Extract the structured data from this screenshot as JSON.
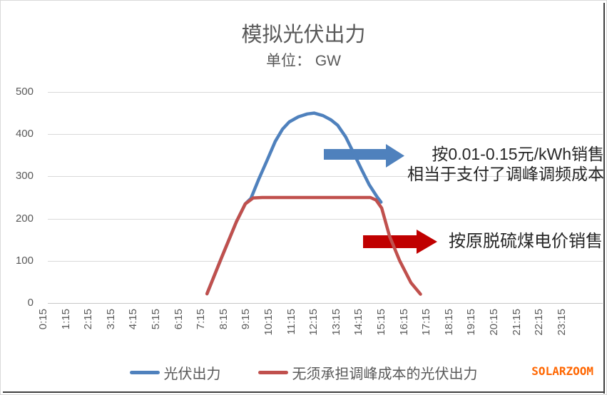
{
  "chart": {
    "title": "模拟光伏出力",
    "subtitle": "单位： GW",
    "watermark": "SOLARZOOM",
    "watermark_color": "#FF6600"
  },
  "chart_data": {
    "type": "line",
    "title": "模拟光伏出力",
    "unit": "GW",
    "ylabel": "",
    "xlabel": "",
    "ylim": [
      0,
      500
    ],
    "y_ticks": [
      0,
      100,
      200,
      300,
      400,
      500
    ],
    "grid": true,
    "legend_position": "bottom",
    "x_tick_labels": [
      "0:15",
      "1:15",
      "2:15",
      "3:15",
      "4:15",
      "5:15",
      "6:15",
      "7:15",
      "8:15",
      "9:15",
      "10:15",
      "11:15",
      "12:15",
      "13:15",
      "14:15",
      "15:15",
      "16:15",
      "17:15",
      "18:15",
      "19:15",
      "20:15",
      "21:15",
      "22:15",
      "23:15"
    ],
    "series": [
      {
        "name": "光伏出力",
        "color": "#4F81BD",
        "points": [
          [
            7.25,
            22
          ],
          [
            7.9,
            108
          ],
          [
            8.55,
            192
          ],
          [
            8.95,
            235
          ],
          [
            9.2,
            248
          ],
          [
            9.55,
            294
          ],
          [
            9.9,
            336
          ],
          [
            10.28,
            383
          ],
          [
            10.6,
            412
          ],
          [
            10.9,
            429
          ],
          [
            11.3,
            441
          ],
          [
            11.7,
            448
          ],
          [
            12.0,
            450
          ],
          [
            12.4,
            444
          ],
          [
            12.75,
            434
          ],
          [
            13.05,
            421
          ],
          [
            13.4,
            394
          ],
          [
            13.75,
            356
          ],
          [
            14.1,
            317
          ],
          [
            14.45,
            280
          ],
          [
            14.8,
            251
          ],
          [
            14.97,
            239
          ]
        ]
      },
      {
        "name": "无须承担调峰成本的光伏出力",
        "color": "#C0504D",
        "points": [
          [
            7.25,
            22
          ],
          [
            7.9,
            108
          ],
          [
            8.55,
            192
          ],
          [
            8.95,
            235
          ],
          [
            9.3,
            249
          ],
          [
            9.7,
            250
          ],
          [
            14.5,
            250
          ],
          [
            14.75,
            244
          ],
          [
            15.0,
            225
          ],
          [
            15.35,
            158
          ],
          [
            15.8,
            100
          ],
          [
            16.3,
            48
          ],
          [
            16.72,
            21
          ]
        ]
      }
    ],
    "annotations": [
      {
        "id": "blue",
        "arrow_color": "#4F81BD",
        "text_lines": [
          "按0.01-0.15元/kWh销售",
          "相当于支付了调峰调频成本"
        ]
      },
      {
        "id": "red",
        "arrow_color": "#C00000",
        "text_lines": [
          "按原脱硫煤电价销售"
        ]
      }
    ]
  }
}
